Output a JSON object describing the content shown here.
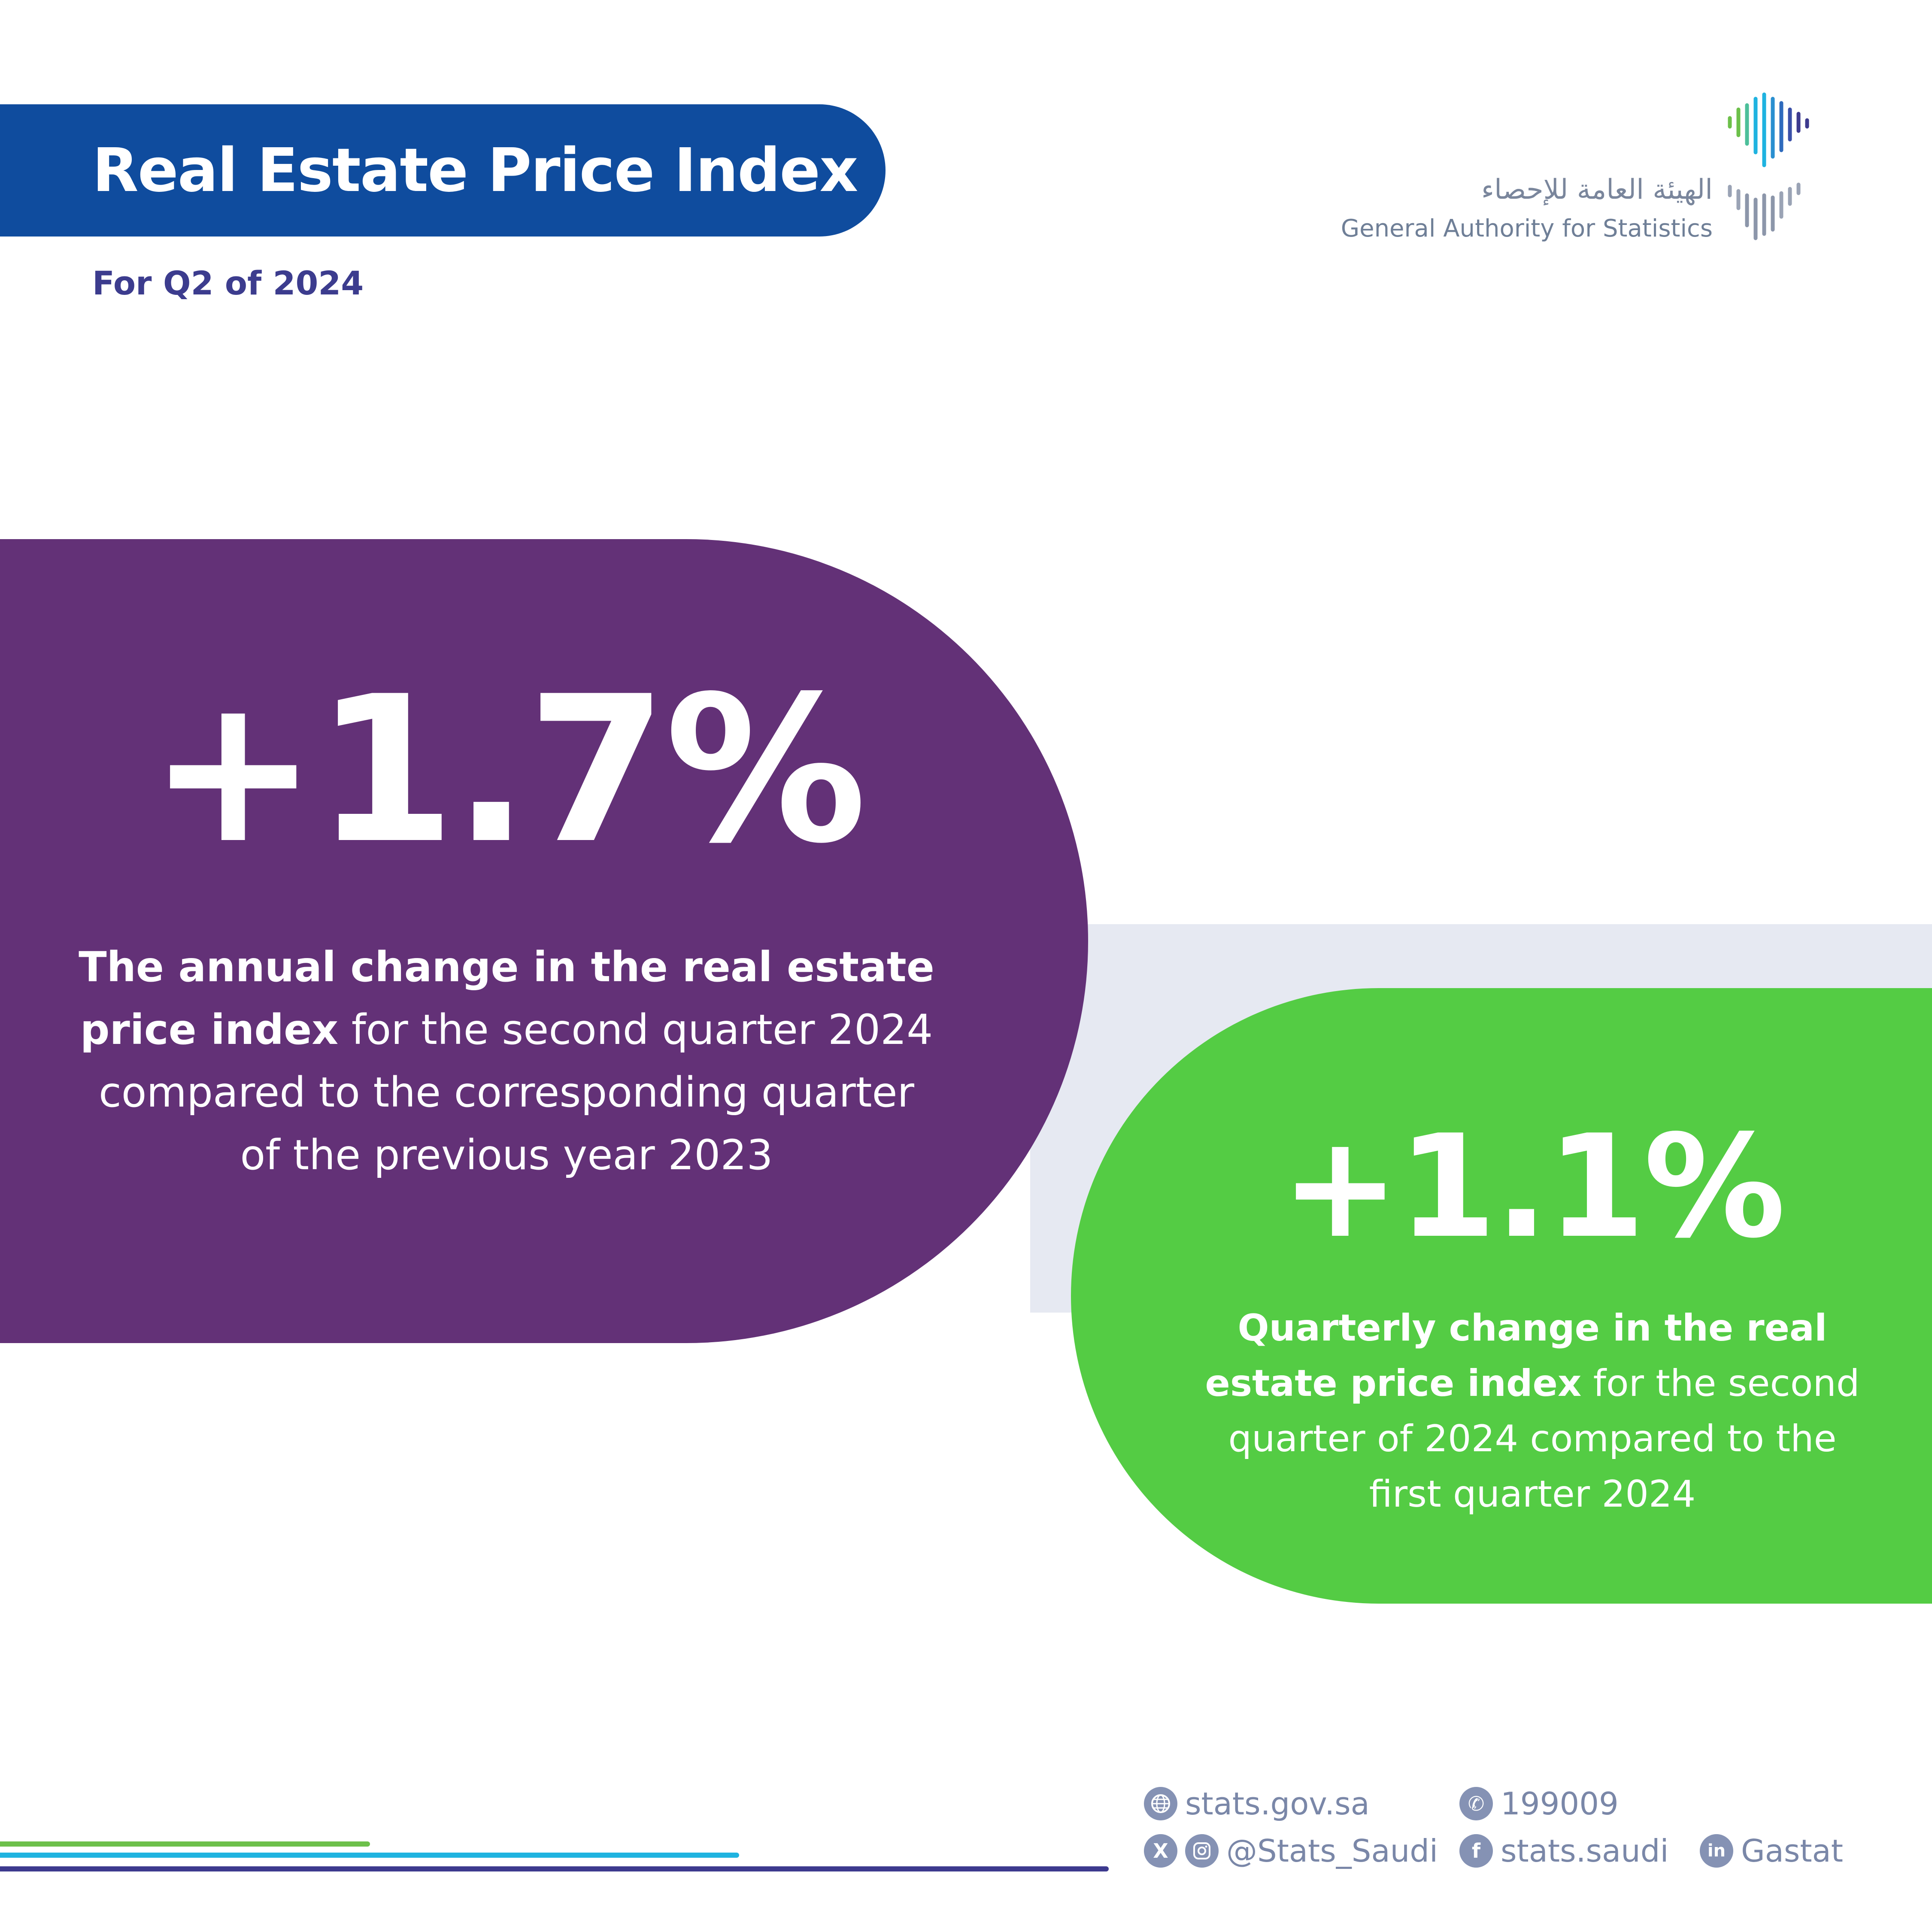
{
  "header": {
    "title": "Real Estate Price Index",
    "subtitle": "For Q2 of 2024"
  },
  "logo": {
    "arabic": "الهيئة العامة للإحصاء",
    "english": "General Authority for Statistics",
    "icon": "gastat-logo-icon"
  },
  "annual": {
    "value": "+1.7%",
    "desc_bold": "The annual change in the real estate price index",
    "desc_rest": " for the second quarter 2024 compared to the corresponding quarter of the previous year 2023"
  },
  "quarterly": {
    "value": "+1.1%",
    "desc_bold": "Quarterly change in the real estate price index",
    "desc_rest": " for the second quarter of 2024 compared to the first quarter 2024"
  },
  "footer": {
    "website": "stats.gov.sa",
    "phone": "199009",
    "social_handle": "@Stats_Saudi",
    "facebook": "stats.saudi",
    "linkedin": "Gastat",
    "icons": [
      "globe-icon",
      "phone-icon",
      "x-icon",
      "instagram-icon",
      "facebook-icon",
      "linkedin-icon"
    ]
  },
  "colors": {
    "title_bg": "#0f4c9e",
    "purple": "#633177",
    "green": "#54cc44",
    "band": "#e6e9f2",
    "lines": [
      "#6cc04a",
      "#1fb3e0",
      "#3d3a8e"
    ]
  }
}
